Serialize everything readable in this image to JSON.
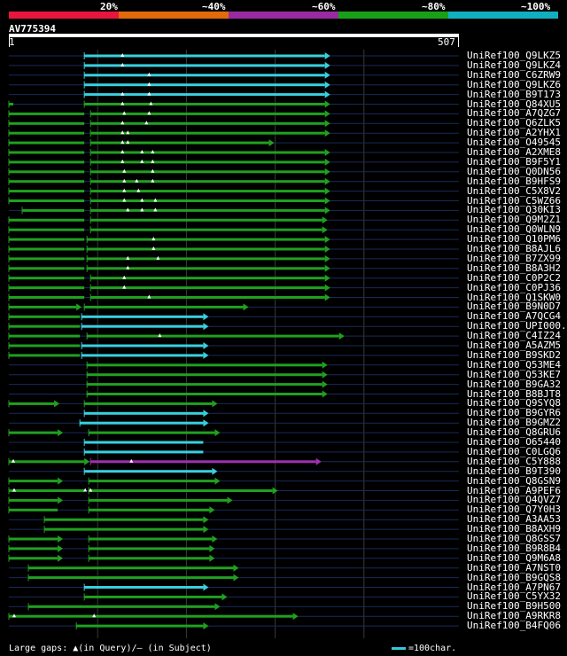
{
  "legend": {
    "segments": [
      {
        "label": "20%",
        "color": "#e8163c"
      },
      {
        "label": "~40%",
        "color": "#e06a0c"
      },
      {
        "label": "~60%",
        "color": "#9a2aa0"
      },
      {
        "label": "~80%",
        "color": "#18a018"
      },
      {
        "label": "~100%",
        "color": "#10b0c0"
      }
    ]
  },
  "query": {
    "id": "AV775394",
    "start": "1",
    "end": "507",
    "length": 507
  },
  "colors": {
    "cyan": "#38d0e0",
    "green": "#20a020",
    "purple": "#a030b0",
    "line": "#1a2a5a",
    "grid": "#3a3a3a"
  },
  "hits": [
    {
      "label": "UniRef100_Q9LKZ5",
      "segs": [
        [
          85,
          356,
          "cyan",
          1
        ]
      ],
      "marks": [
        128
      ]
    },
    {
      "label": "UniRef100_Q9LKZ4",
      "segs": [
        [
          85,
          356,
          "cyan",
          1
        ]
      ],
      "marks": [
        128
      ]
    },
    {
      "label": "UniRef100_C6ZRW9",
      "segs": [
        [
          85,
          356,
          "cyan",
          1
        ]
      ],
      "marks": [
        158
      ]
    },
    {
      "label": "UniRef100_Q9LKZ6",
      "segs": [
        [
          85,
          356,
          "cyan",
          1
        ]
      ],
      "marks": [
        158
      ]
    },
    {
      "label": "UniRef100_B9T173",
      "segs": [
        [
          85,
          356,
          "cyan",
          1
        ]
      ],
      "marks": [
        128,
        158
      ]
    },
    {
      "label": "UniRef100_Q84XU5",
      "segs": [
        [
          0,
          5,
          "green",
          0
        ],
        [
          85,
          356,
          "green",
          1
        ]
      ],
      "marks": [
        128,
        160
      ]
    },
    {
      "label": "UniRef100_A7QZG7",
      "segs": [
        [
          0,
          85,
          "green",
          0
        ],
        [
          92,
          356,
          "green",
          1
        ]
      ],
      "marks": [
        130,
        158
      ]
    },
    {
      "label": "UniRef100_Q6ZLK5",
      "segs": [
        [
          0,
          85,
          "green",
          0
        ],
        [
          92,
          356,
          "green",
          1
        ]
      ],
      "marks": [
        128,
        155
      ]
    },
    {
      "label": "UniRef100_A2YHX1",
      "segs": [
        [
          0,
          85,
          "green",
          0
        ],
        [
          92,
          356,
          "green",
          1
        ]
      ],
      "marks": [
        128,
        134
      ]
    },
    {
      "label": "UniRef100_O49545",
      "segs": [
        [
          0,
          85,
          "green",
          0
        ],
        [
          92,
          293,
          "green",
          1
        ]
      ],
      "marks": [
        128,
        134
      ]
    },
    {
      "label": "UniRef100_A2XME8",
      "segs": [
        [
          0,
          85,
          "green",
          0
        ],
        [
          92,
          356,
          "green",
          1
        ]
      ],
      "marks": [
        128,
        150,
        162
      ]
    },
    {
      "label": "UniRef100_B9F5Y1",
      "segs": [
        [
          0,
          85,
          "green",
          0
        ],
        [
          92,
          356,
          "green",
          1
        ]
      ],
      "marks": [
        128,
        150,
        162
      ]
    },
    {
      "label": "UniRef100_Q0DN56",
      "segs": [
        [
          0,
          85,
          "green",
          0
        ],
        [
          92,
          356,
          "green",
          1
        ]
      ],
      "marks": [
        130,
        162
      ]
    },
    {
      "label": "UniRef100_B9HFS9",
      "segs": [
        [
          0,
          85,
          "green",
          0
        ],
        [
          92,
          356,
          "green",
          1
        ]
      ],
      "marks": [
        130,
        144,
        162
      ]
    },
    {
      "label": "UniRef100_C5X8V2",
      "segs": [
        [
          0,
          85,
          "green",
          0
        ],
        [
          92,
          356,
          "green",
          1
        ]
      ],
      "marks": [
        130,
        146
      ]
    },
    {
      "label": "UniRef100_C5WZ66",
      "segs": [
        [
          0,
          85,
          "green",
          0
        ],
        [
          92,
          356,
          "green",
          1
        ]
      ],
      "marks": [
        130,
        150,
        165
      ]
    },
    {
      "label": "UniRef100_Q30KI3",
      "segs": [
        [
          15,
          85,
          "green",
          0
        ],
        [
          92,
          356,
          "green",
          1
        ]
      ],
      "marks": [
        134,
        150,
        165
      ]
    },
    {
      "label": "UniRef100_Q9M2Z1",
      "segs": [
        [
          0,
          85,
          "green",
          0
        ],
        [
          92,
          353,
          "green",
          1
        ]
      ],
      "marks": []
    },
    {
      "label": "UniRef100_Q0WLN9",
      "segs": [
        [
          0,
          85,
          "green",
          0
        ],
        [
          92,
          353,
          "green",
          1
        ]
      ],
      "marks": []
    },
    {
      "label": "UniRef100_Q10PM6",
      "segs": [
        [
          0,
          85,
          "green",
          0
        ],
        [
          88,
          356,
          "green",
          1
        ]
      ],
      "marks": [
        163
      ]
    },
    {
      "label": "UniRef100_B8AJL6",
      "segs": [
        [
          0,
          85,
          "green",
          0
        ],
        [
          88,
          356,
          "green",
          1
        ]
      ],
      "marks": [
        163
      ]
    },
    {
      "label": "UniRef100_B7ZX99",
      "segs": [
        [
          0,
          85,
          "green",
          0
        ],
        [
          88,
          356,
          "green",
          1
        ]
      ],
      "marks": [
        134,
        168
      ]
    },
    {
      "label": "UniRef100_B8A3H2",
      "segs": [
        [
          0,
          85,
          "green",
          0
        ],
        [
          88,
          356,
          "green",
          1
        ]
      ],
      "marks": [
        134
      ]
    },
    {
      "label": "UniRef100_C0P2C2",
      "segs": [
        [
          0,
          85,
          "green",
          0
        ],
        [
          92,
          356,
          "green",
          1
        ]
      ],
      "marks": [
        130
      ]
    },
    {
      "label": "UniRef100_C0PJ36",
      "segs": [
        [
          0,
          85,
          "green",
          0
        ],
        [
          92,
          356,
          "green",
          1
        ]
      ],
      "marks": [
        130
      ]
    },
    {
      "label": "UniRef100_Q1SKW0",
      "segs": [
        [
          0,
          85,
          "green",
          0
        ],
        [
          92,
          356,
          "green",
          1
        ]
      ],
      "marks": [
        158
      ]
    },
    {
      "label": "UniRef100_B9N0D7",
      "segs": [
        [
          0,
          76,
          "green",
          1
        ],
        [
          85,
          264,
          "green",
          1
        ]
      ],
      "marks": []
    },
    {
      "label": "UniRef100_A7QCG4",
      "segs": [
        [
          0,
          80,
          "green",
          0
        ],
        [
          82,
          219,
          "cyan",
          1
        ]
      ],
      "marks": []
    },
    {
      "label": "UniRef100_UPI000..",
      "segs": [
        [
          0,
          80,
          "green",
          0
        ],
        [
          82,
          219,
          "cyan",
          1
        ]
      ],
      "marks": []
    },
    {
      "label": "UniRef100_C4IZ24",
      "segs": [
        [
          0,
          80,
          "green",
          0
        ],
        [
          88,
          372,
          "green",
          1
        ]
      ],
      "marks": [
        170
      ]
    },
    {
      "label": "UniRef100_A5AZM5",
      "segs": [
        [
          0,
          80,
          "green",
          0
        ],
        [
          82,
          219,
          "cyan",
          1
        ]
      ],
      "marks": []
    },
    {
      "label": "UniRef100_B9SKD2",
      "segs": [
        [
          0,
          80,
          "green",
          0
        ],
        [
          82,
          219,
          "cyan",
          1
        ]
      ],
      "marks": []
    },
    {
      "label": "UniRef100_Q53ME4",
      "segs": [
        [
          88,
          353,
          "green",
          1
        ]
      ],
      "marks": []
    },
    {
      "label": "UniRef100_Q53KE7",
      "segs": [
        [
          88,
          353,
          "green",
          1
        ]
      ],
      "marks": []
    },
    {
      "label": "UniRef100_B9GA32",
      "segs": [
        [
          88,
          353,
          "green",
          1
        ]
      ],
      "marks": []
    },
    {
      "label": "UniRef100_B8BJT8",
      "segs": [
        [
          88,
          353,
          "green",
          1
        ]
      ],
      "marks": []
    },
    {
      "label": "UniRef100_Q9SYQ8",
      "segs": [
        [
          0,
          51,
          "green",
          1
        ],
        [
          85,
          229,
          "green",
          1
        ]
      ],
      "marks": []
    },
    {
      "label": "UniRef100_B9GYR6",
      "segs": [
        [
          85,
          219,
          "cyan",
          1
        ]
      ],
      "marks": []
    },
    {
      "label": "UniRef100_B9GMZ2",
      "segs": [
        [
          80,
          219,
          "cyan",
          1
        ]
      ],
      "marks": []
    },
    {
      "label": "UniRef100_Q8GRU6",
      "segs": [
        [
          0,
          55,
          "green",
          1
        ],
        [
          90,
          232,
          "green",
          1
        ]
      ],
      "marks": []
    },
    {
      "label": "UniRef100_O65440",
      "segs": [
        [
          85,
          219,
          "cyan",
          0
        ]
      ],
      "marks": []
    },
    {
      "label": "UniRef100_C0LGQ6",
      "segs": [
        [
          85,
          219,
          "cyan",
          0
        ]
      ],
      "marks": []
    },
    {
      "label": "UniRef100_C5Y888",
      "segs": [
        [
          0,
          85,
          "green",
          1
        ],
        [
          92,
          346,
          "purple",
          1
        ]
      ],
      "marks": [
        5,
        138
      ]
    },
    {
      "label": "UniRef100_B9T390",
      "segs": [
        [
          85,
          229,
          "cyan",
          1
        ]
      ],
      "marks": []
    },
    {
      "label": "UniRef100_Q8GSN9",
      "segs": [
        [
          0,
          55,
          "green",
          1
        ],
        [
          90,
          232,
          "green",
          1
        ]
      ],
      "marks": []
    },
    {
      "label": "UniRef100_A9PEF6",
      "segs": [
        [
          0,
          85,
          "green",
          0
        ],
        [
          90,
          297,
          "green",
          1
        ]
      ],
      "marks": [
        6,
        86,
        92
      ]
    },
    {
      "label": "UniRef100_Q4QVZ7",
      "segs": [
        [
          0,
          55,
          "green",
          1
        ],
        [
          90,
          246,
          "green",
          1
        ]
      ],
      "marks": []
    },
    {
      "label": "UniRef100_Q7Y0H3",
      "segs": [
        [
          0,
          55,
          "green",
          0
        ],
        [
          90,
          226,
          "green",
          1
        ]
      ],
      "marks": []
    },
    {
      "label": "UniRef100_A3AA53",
      "segs": [
        [
          40,
          219,
          "green",
          1
        ]
      ],
      "marks": []
    },
    {
      "label": "UniRef100_B8AXH9",
      "segs": [
        [
          40,
          219,
          "green",
          1
        ]
      ],
      "marks": []
    },
    {
      "label": "UniRef100_Q8GSS7",
      "segs": [
        [
          0,
          55,
          "green",
          1
        ],
        [
          90,
          229,
          "green",
          1
        ]
      ],
      "marks": []
    },
    {
      "label": "UniRef100_B9R8B4",
      "segs": [
        [
          0,
          55,
          "green",
          1
        ],
        [
          90,
          226,
          "green",
          1
        ]
      ],
      "marks": []
    },
    {
      "label": "UniRef100_Q9M6A8",
      "segs": [
        [
          0,
          55,
          "green",
          1
        ],
        [
          90,
          226,
          "green",
          1
        ]
      ],
      "marks": []
    },
    {
      "label": "UniRef100_A7NST0",
      "segs": [
        [
          22,
          253,
          "green",
          1
        ]
      ],
      "marks": []
    },
    {
      "label": "UniRef100_B9GQS8",
      "segs": [
        [
          22,
          253,
          "green",
          1
        ]
      ],
      "marks": []
    },
    {
      "label": "UniRef100_A7PN67",
      "segs": [
        [
          85,
          219,
          "cyan",
          1
        ]
      ],
      "marks": []
    },
    {
      "label": "UniRef100_C5YX32",
      "segs": [
        [
          85,
          240,
          "green",
          1
        ]
      ],
      "marks": []
    },
    {
      "label": "UniRef100_B9H500",
      "segs": [
        [
          22,
          232,
          "green",
          1
        ]
      ],
      "marks": []
    },
    {
      "label": "UniRef100_A9RKR8",
      "segs": [
        [
          0,
          320,
          "green",
          1
        ]
      ],
      "marks": [
        6,
        96
      ]
    },
    {
      "label": "UniRef100_B4FQ06",
      "segs": [
        [
          76,
          219,
          "green",
          1
        ]
      ],
      "marks": []
    }
  ],
  "footer": {
    "gaps_label": "Large gaps: ▲(in Query)/– (in Subject)",
    "scale_label": "=100char."
  }
}
